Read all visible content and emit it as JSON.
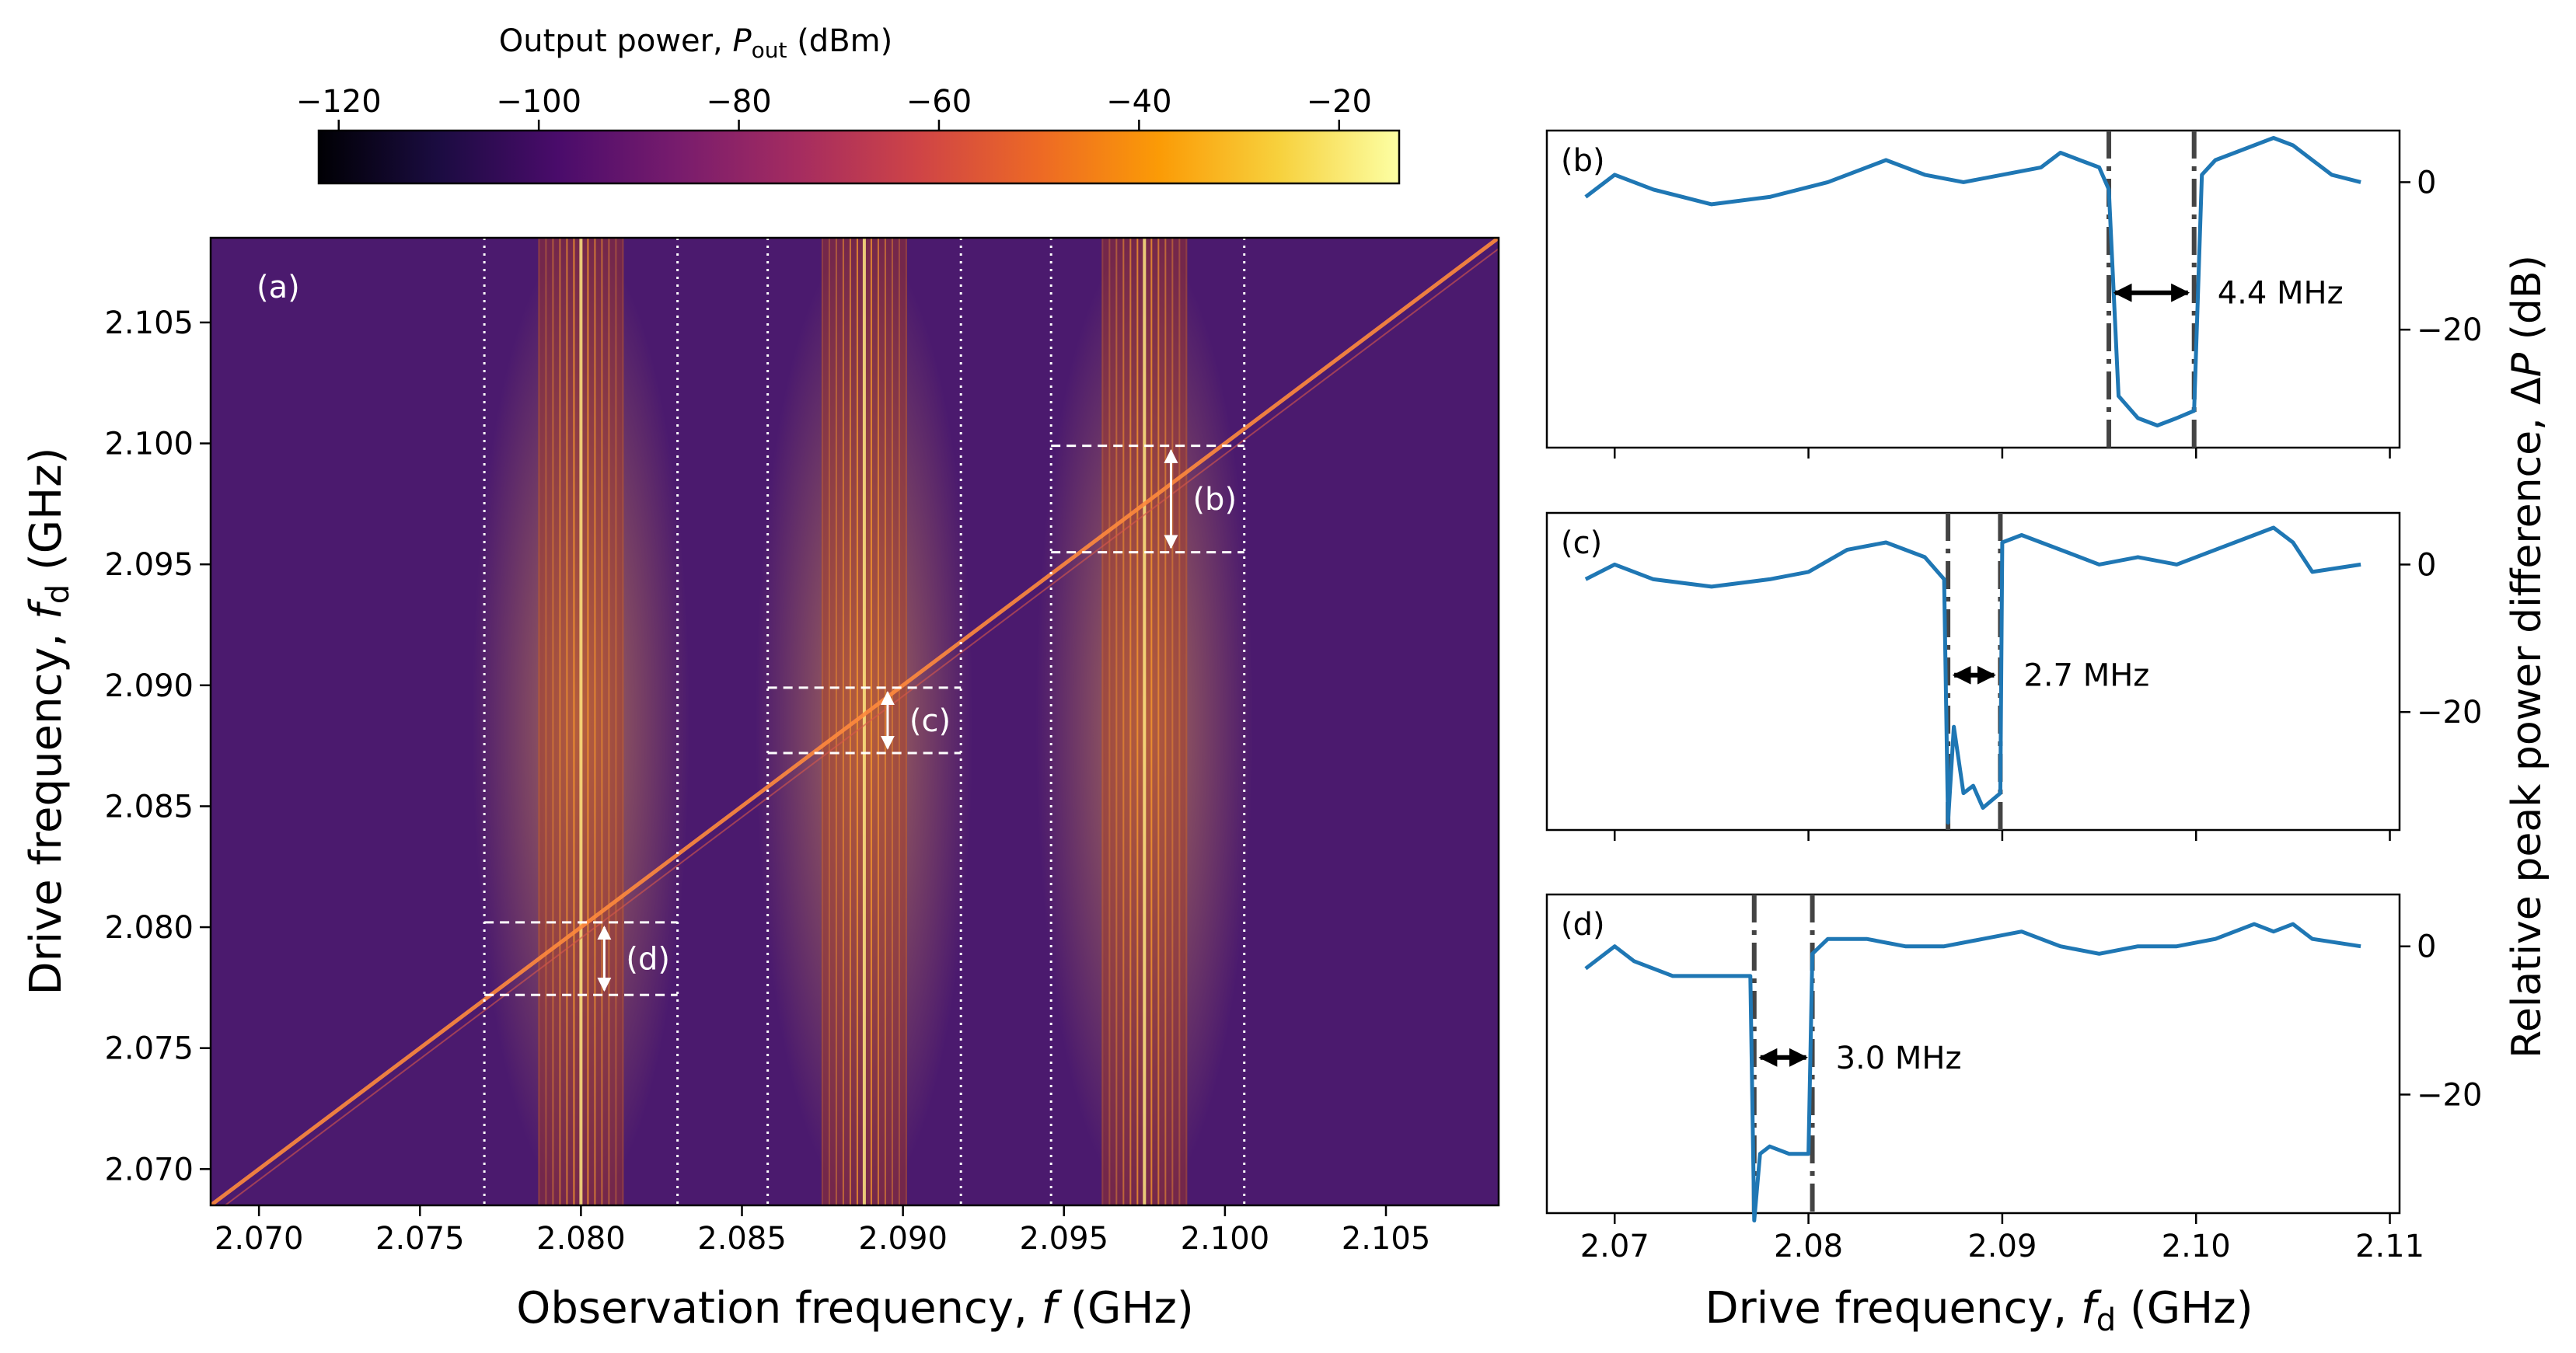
{
  "colorbar": {
    "label_prefix": "Output power, ",
    "label_symbol": "P",
    "label_subscript": "out",
    "label_unit": " (dBm)",
    "ticks": [
      "−120",
      "−100",
      "−80",
      "−60",
      "−40",
      "−20"
    ],
    "tick_values": [
      -120,
      -100,
      -80,
      -60,
      -40,
      -20
    ],
    "range": [
      -122,
      -14
    ],
    "colormap": "inferno",
    "colormap_stops": [
      "#000004",
      "#1b0c41",
      "#4a0c6b",
      "#781c6d",
      "#a52c60",
      "#cf4446",
      "#ed6925",
      "#fb9b06",
      "#f7d13d",
      "#fcffa4"
    ]
  },
  "panel_a": {
    "panel_label": "(a)",
    "xlabel_prefix": "Observation frequency, ",
    "xlabel_symbol": "f",
    "xlabel_unit": " (GHz)",
    "ylabel_prefix": "Drive frequency, ",
    "ylabel_symbol": "f",
    "ylabel_subscript": "d",
    "ylabel_unit": " (GHz)",
    "background_color": "#4b1a6e"
  },
  "panel_b": {
    "panel_label": "(b)",
    "width_label": "4.4 MHz"
  },
  "panel_c": {
    "panel_label": "(c)",
    "width_label": "2.7 MHz"
  },
  "panel_d": {
    "panel_label": "(d)",
    "width_label": "3.0 MHz"
  },
  "right_axes": {
    "xlabel_prefix": "Drive frequency, ",
    "xlabel_symbol": "f",
    "xlabel_subscript": "d",
    "xlabel_unit": " (GHz)",
    "ylabel_prefix": "Relative peak power difference, Δ",
    "ylabel_symbol": "P",
    "ylabel_unit": " (dB)",
    "line_color": "#1f77b4",
    "marker_color": "#444444"
  },
  "chart_data": [
    {
      "type": "heatmap",
      "panel": "(a)",
      "x_ticks": [
        "2.070",
        "2.075",
        "2.080",
        "2.085",
        "2.090",
        "2.095",
        "2.100",
        "2.105"
      ],
      "x_tick_values": [
        2.07,
        2.075,
        2.08,
        2.085,
        2.09,
        2.095,
        2.1,
        2.105
      ],
      "y_ticks": [
        "2.070",
        "2.075",
        "2.080",
        "2.085",
        "2.090",
        "2.095",
        "2.100",
        "2.105"
      ],
      "y_tick_values": [
        2.07,
        2.075,
        2.08,
        2.085,
        2.09,
        2.095,
        2.1,
        2.105
      ],
      "xlim": [
        2.0685,
        2.1085
      ],
      "ylim": [
        2.0685,
        2.1085
      ],
      "resonance_bands_center_ghz": [
        2.08,
        2.0888,
        2.0975
      ],
      "vertical_dotted_lines_ghz": [
        2.077,
        2.083,
        2.0858,
        2.0918,
        2.0946,
        2.1006
      ],
      "windows": [
        {
          "label": "(b)",
          "x_range": [
            2.0946,
            2.1006
          ],
          "y_low": 2.0955,
          "y_high": 2.0999
        },
        {
          "label": "(c)",
          "x_range": [
            2.0858,
            2.0918
          ],
          "y_low": 2.0872,
          "y_high": 2.0899
        },
        {
          "label": "(d)",
          "x_range": [
            2.077,
            2.083
          ],
          "y_low": 2.0772,
          "y_high": 2.0802
        }
      ],
      "diagonal": {
        "from": [
          2.0685,
          2.0685
        ],
        "to": [
          2.1085,
          2.1085
        ]
      }
    },
    {
      "type": "line",
      "panel": "(b)",
      "xlim": [
        2.0665,
        2.1105
      ],
      "ylim": [
        -36,
        7
      ],
      "y_ticks": [
        "0",
        "−20"
      ],
      "y_tick_values": [
        0,
        -20
      ],
      "x": [
        2.0685,
        2.07,
        2.072,
        2.075,
        2.078,
        2.081,
        2.084,
        2.086,
        2.088,
        2.09,
        2.092,
        2.093,
        2.094,
        2.095,
        2.0955,
        2.096,
        2.097,
        2.098,
        2.099,
        2.0999,
        2.1003,
        2.101,
        2.102,
        2.104,
        2.105,
        2.106,
        2.107,
        2.1085
      ],
      "y": [
        -2,
        1,
        -1,
        -3,
        -2,
        0,
        3,
        1,
        0,
        1,
        2,
        4,
        3,
        2,
        -1,
        -29,
        -32,
        -33,
        -32,
        -31,
        1,
        3,
        4,
        6,
        5,
        3,
        1,
        0
      ],
      "gap": {
        "low": 2.0955,
        "high": 2.0999
      },
      "width_label_value_mhz": 4.4
    },
    {
      "type": "line",
      "panel": "(c)",
      "xlim": [
        2.0665,
        2.1105
      ],
      "ylim": [
        -36,
        7
      ],
      "y_ticks": [
        "0",
        "−20"
      ],
      "y_tick_values": [
        0,
        -20
      ],
      "x": [
        2.0685,
        2.07,
        2.072,
        2.075,
        2.078,
        2.08,
        2.082,
        2.084,
        2.086,
        2.087,
        2.0872,
        2.0875,
        2.088,
        2.0885,
        2.089,
        2.0899,
        2.09,
        2.091,
        2.093,
        2.095,
        2.097,
        2.099,
        2.101,
        2.103,
        2.104,
        2.105,
        2.106,
        2.1085
      ],
      "y": [
        -2,
        0,
        -2,
        -3,
        -2,
        -1,
        2,
        3,
        1,
        -2,
        -35,
        -22,
        -31,
        -30,
        -33,
        -31,
        3,
        4,
        2,
        0,
        1,
        0,
        2,
        4,
        5,
        3,
        -1,
        0
      ],
      "gap": {
        "low": 2.0872,
        "high": 2.0899
      },
      "width_label_value_mhz": 2.7
    },
    {
      "type": "line",
      "panel": "(d)",
      "xlim": [
        2.0665,
        2.1105
      ],
      "ylim": [
        -36,
        7
      ],
      "y_ticks": [
        "0",
        "−20"
      ],
      "y_tick_values": [
        0,
        -20
      ],
      "x": [
        2.0685,
        2.07,
        2.071,
        2.073,
        2.0755,
        2.077,
        2.0772,
        2.0775,
        2.078,
        2.079,
        2.08,
        2.0802,
        2.081,
        2.083,
        2.085,
        2.087,
        2.089,
        2.091,
        2.093,
        2.095,
        2.097,
        2.099,
        2.101,
        2.103,
        2.104,
        2.105,
        2.106,
        2.1085
      ],
      "y": [
        -3,
        0,
        -2,
        -4,
        -4,
        -4,
        -37,
        -28,
        -27,
        -28,
        -28,
        -1,
        1,
        1,
        0,
        0,
        1,
        2,
        0,
        -1,
        0,
        0,
        1,
        3,
        2,
        3,
        1,
        0
      ],
      "gap": {
        "low": 2.0772,
        "high": 2.0802
      },
      "width_label_value_mhz": 3.0
    }
  ],
  "right_x_ticks": [
    "2.07",
    "2.08",
    "2.09",
    "2.10",
    "2.11"
  ],
  "right_x_tick_values": [
    2.07,
    2.08,
    2.09,
    2.1,
    2.11
  ]
}
